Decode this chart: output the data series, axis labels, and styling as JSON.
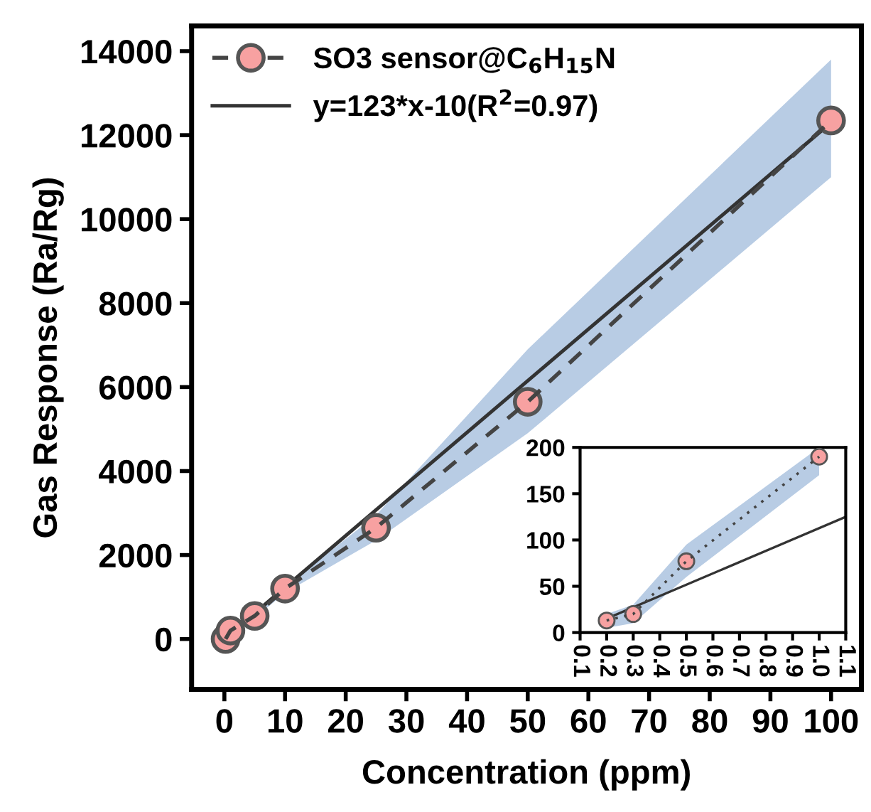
{
  "chart_data": [
    {
      "type": "line",
      "xlabel": "Concentration (ppm)",
      "ylabel": "Gas Response (Ra/Rg)",
      "xlim": [
        -5.4,
        105
      ],
      "ylim": [
        -1200,
        14600
      ],
      "xticks": [
        0,
        10,
        20,
        30,
        40,
        50,
        60,
        70,
        80,
        90,
        100
      ],
      "yticks": [
        0,
        2000,
        4000,
        6000,
        8000,
        10000,
        12000,
        14000
      ],
      "grid": false,
      "legend": "top left",
      "series": [
        {
          "name": "SO3 sensor@C$_{6}$H$_{15}$N",
          "color": "#f7a1a1",
          "marker": "circle",
          "line_style": "dashed",
          "x": [
            0.2,
            1,
            5,
            10,
            25,
            50,
            100
          ],
          "values": [
            0,
            200,
            550,
            1200,
            2650,
            5650,
            12350
          ],
          "lower": [
            0,
            150,
            500,
            1100,
            2350,
            4900,
            11000
          ],
          "upper": [
            0,
            250,
            600,
            1250,
            2950,
            6900,
            13800
          ]
        },
        {
          "name": "y=123*x-10(R$^{2}$=0.97)",
          "color": "#333333",
          "marker": "none",
          "line_style": "solid",
          "x": [
            0,
            100
          ],
          "values": [
            0,
            12300
          ]
        }
      ]
    },
    {
      "type": "line",
      "xlim": [
        0.1,
        1.1
      ],
      "ylim": [
        0,
        200
      ],
      "xticks": [
        {
          "value": 0.1,
          "label": "0.1"
        },
        {
          "value": 0.2,
          "label": "0.2"
        },
        {
          "value": 0.3,
          "label": "0.3"
        },
        {
          "value": 0.4,
          "label": "0.4"
        },
        {
          "value": 0.5,
          "label": "0.5"
        },
        {
          "value": 0.6,
          "label": "0.6"
        },
        {
          "value": 0.7,
          "label": "0.7"
        },
        {
          "value": 0.8,
          "label": "0.8"
        },
        {
          "value": 0.9,
          "label": "0.9"
        },
        {
          "value": 1.0,
          "label": "1.0"
        },
        {
          "value": 1.1,
          "label": "1.1"
        }
      ],
      "yticks": [
        0,
        50,
        100,
        150,
        200
      ],
      "grid": false,
      "series": [
        {
          "color": "#f7a1a1",
          "marker": "circle",
          "line_style": "dotted",
          "x": [
            0.2,
            0.3,
            0.5,
            1.0
          ],
          "values": [
            13,
            20,
            77,
            190
          ],
          "lower": [
            5,
            10,
            60,
            170
          ],
          "upper": [
            20,
            30,
            95,
            200
          ]
        },
        {
          "color": "#333333",
          "marker": "none",
          "line_style": "solid",
          "x": [
            0.2,
            1.1
          ],
          "values": [
            15,
            125
          ]
        }
      ]
    }
  ]
}
